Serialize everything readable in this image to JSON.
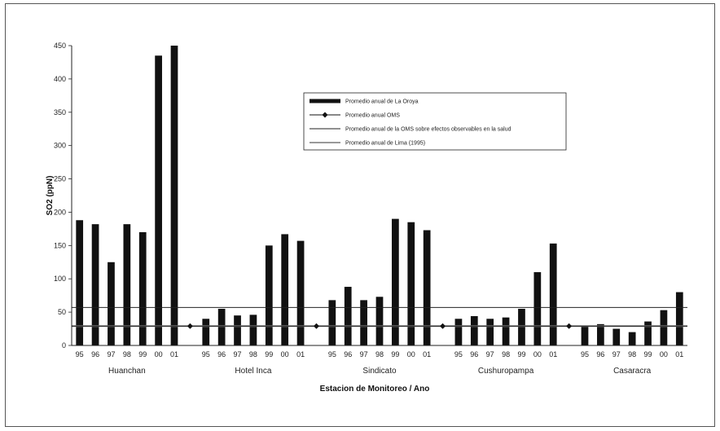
{
  "chart_data": {
    "type": "bar",
    "ylabel": "SO2 (ppN)",
    "xlabel": "Estacion de Monitoreo / Ano",
    "ylim": [
      0,
      450
    ],
    "yticks": [
      "0",
      "50",
      "100",
      "150",
      "200",
      "250",
      "300",
      "350",
      "400",
      "450"
    ],
    "groups": [
      {
        "name": "Huanchan",
        "years": [
          "95",
          "96",
          "97",
          "98",
          "99",
          "00",
          "01"
        ],
        "values": [
          188,
          182,
          125,
          182,
          170,
          435,
          452
        ]
      },
      {
        "name": "Hotel Inca",
        "years": [
          "95",
          "96",
          "97",
          "98",
          "99",
          "00",
          "01"
        ],
        "values": [
          40,
          55,
          45,
          46,
          150,
          167,
          157
        ]
      },
      {
        "name": "Sindicato",
        "years": [
          "95",
          "96",
          "97",
          "98",
          "99",
          "00",
          "01"
        ],
        "values": [
          68,
          88,
          68,
          73,
          190,
          185,
          173
        ]
      },
      {
        "name": "Cushuropampa",
        "years": [
          "95",
          "96",
          "97",
          "98",
          "99",
          "00",
          "01"
        ],
        "values": [
          40,
          44,
          40,
          42,
          55,
          110,
          153
        ]
      },
      {
        "name": "Casaracra",
        "years": [
          "95",
          "96",
          "97",
          "98",
          "99",
          "00",
          "01"
        ],
        "values": [
          30,
          32,
          25,
          20,
          36,
          53,
          80
        ]
      }
    ],
    "reference_lines": {
      "oms": 29,
      "oms_health": 57,
      "lima": 29
    },
    "legend": {
      "placement": "top-center",
      "entries": [
        "Promedio anual de La Oroya",
        "Promedio anual OMS",
        "Promedio anual de la OMS sobre efectos observables en la salud",
        "Promedio anual de Lima (1995)"
      ]
    },
    "colors": {
      "bars": "#111111",
      "oms_line": "#111111",
      "health_line": "#222222",
      "lima_line": "#999999"
    }
  }
}
